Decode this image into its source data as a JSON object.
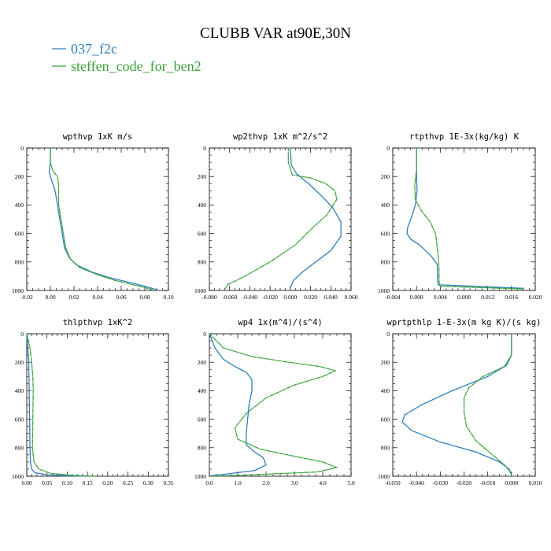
{
  "figure": {
    "title": "CLUBB VAR at90E,30N"
  },
  "legend": [
    {
      "name": "037_f2c",
      "color": "#2f7fbe",
      "dash": "solid"
    },
    {
      "name": "steffen_code_for_ben2",
      "color": "#3aa23a",
      "dash": "dash"
    }
  ],
  "chart_data": [
    {
      "type": "line",
      "title": "wpthvp  1xK m/s",
      "xlim": [
        -0.02,
        0.1
      ],
      "ylim": [
        0,
        1000
      ],
      "y_inverted": true,
      "xticks": [
        "-0.02",
        "0.00",
        "0.02",
        "0.04",
        "0.06",
        "0.08",
        "0.10"
      ],
      "xtick_values": [
        -0.02,
        0.0,
        0.02,
        0.04,
        0.06,
        0.08,
        0.1
      ],
      "yticks": [
        "0",
        "200",
        "400",
        "600",
        "800",
        "1000"
      ],
      "series": [
        {
          "name": "037_f2c",
          "x": [
            0.0,
            0.0,
            -0.001,
            0.0,
            0.004,
            0.006,
            0.008,
            0.01,
            0.012,
            0.016,
            0.022,
            0.035,
            0.05,
            0.065,
            0.08,
            0.09
          ],
          "y": [
            0,
            100,
            165,
            200,
            300,
            400,
            500,
            600,
            700,
            770,
            820,
            870,
            910,
            940,
            970,
            995
          ]
        },
        {
          "name": "steffen_code_for_ben2",
          "x": [
            0.0,
            0.0,
            0.002,
            0.006,
            0.007,
            0.007,
            0.009,
            0.011,
            0.013,
            0.017,
            0.025,
            0.04,
            0.055,
            0.07,
            0.08,
            0.086
          ],
          "y": [
            0,
            100,
            160,
            200,
            260,
            400,
            500,
            600,
            700,
            780,
            840,
            890,
            930,
            960,
            980,
            995
          ]
        }
      ]
    },
    {
      "type": "line",
      "title": "wp2thvp  1xK m^2/s^2",
      "xlim": [
        -0.08,
        0.06
      ],
      "ylim": [
        0,
        1000
      ],
      "y_inverted": true,
      "xticks": [
        "-0.080",
        "-0.060",
        "-0.040",
        "-0.020",
        "0.000",
        "0.020",
        "0.040",
        "0.060"
      ],
      "xtick_values": [
        -0.08,
        -0.06,
        -0.04,
        -0.02,
        0.0,
        0.02,
        0.04,
        0.06
      ],
      "yticks": [
        "0",
        "200",
        "400",
        "600",
        "800",
        "1000"
      ],
      "series": [
        {
          "name": "037_f2c",
          "x": [
            0.0,
            0.001,
            0.006,
            0.018,
            0.03,
            0.042,
            0.05,
            0.05,
            0.04,
            0.025,
            0.012,
            0.003,
            0.0
          ],
          "y": [
            0,
            120,
            180,
            250,
            330,
            420,
            520,
            620,
            720,
            800,
            870,
            930,
            980
          ]
        },
        {
          "name": "steffen_code_for_ben2",
          "x": [
            -0.002,
            -0.002,
            0.002,
            0.02,
            0.035,
            0.044,
            0.046,
            0.036,
            0.022,
            0.005,
            -0.02,
            -0.045,
            -0.062,
            -0.064
          ],
          "y": [
            0,
            100,
            190,
            210,
            250,
            300,
            360,
            470,
            560,
            680,
            800,
            900,
            960,
            985
          ]
        }
      ]
    },
    {
      "type": "line",
      "title": "rtpthvp  1E-3x(kg/kg) K",
      "xlim": [
        -0.004,
        0.02
      ],
      "ylim": [
        0,
        1000
      ],
      "y_inverted": true,
      "xticks": [
        "-0.004",
        "0.000",
        "0.004",
        "0.008",
        "0.012",
        "0.016",
        "0.020"
      ],
      "xtick_values": [
        -0.004,
        0.0,
        0.004,
        0.008,
        0.012,
        0.016,
        0.02
      ],
      "yticks": [
        "0",
        "200",
        "400",
        "600",
        "800",
        "1000"
      ],
      "series": [
        {
          "name": "037_f2c",
          "x": [
            0.0,
            0.0,
            0.0001,
            -0.0002,
            -0.0008,
            -0.0015,
            -0.0016,
            -0.001,
            0.0005,
            0.0025,
            0.0035,
            0.0035,
            0.0036,
            0.018
          ],
          "y": [
            0,
            200,
            300,
            400,
            480,
            560,
            600,
            640,
            680,
            760,
            820,
            870,
            960,
            985
          ]
        },
        {
          "name": "steffen_code_for_ben2",
          "x": [
            0.0,
            0.0,
            -0.0003,
            -0.0002,
            0.0008,
            0.0023,
            0.0032,
            0.0035,
            0.0037,
            0.0038,
            0.0038,
            0.0039,
            0.018
          ],
          "y": [
            0,
            150,
            260,
            360,
            440,
            520,
            600,
            700,
            780,
            860,
            930,
            970,
            990
          ]
        }
      ]
    },
    {
      "type": "line",
      "title": "thlpthvp  1xK^2",
      "xlim": [
        0.0,
        0.35
      ],
      "ylim": [
        0,
        1000
      ],
      "y_inverted": true,
      "xticks": [
        "0.00",
        "0.05",
        "0.10",
        "0.15",
        "0.20",
        "0.25",
        "0.30",
        "0.35"
      ],
      "xtick_values": [
        0.0,
        0.05,
        0.1,
        0.15,
        0.2,
        0.25,
        0.3,
        0.35
      ],
      "yticks": [
        "0",
        "200",
        "400",
        "600",
        "800",
        "1000"
      ],
      "series": [
        {
          "name": "037_f2c",
          "x": [
            0.0,
            0.005,
            0.006,
            0.007,
            0.008,
            0.009,
            0.012,
            0.02,
            0.05,
            0.1,
            0.15
          ],
          "y": [
            0,
            200,
            400,
            600,
            800,
            900,
            950,
            975,
            990,
            997,
            1000
          ]
        },
        {
          "name": "steffen_code_for_ben2",
          "x": [
            0.0,
            0.008,
            0.012,
            0.015,
            0.016,
            0.015,
            0.014,
            0.018,
            0.03,
            0.06,
            0.12,
            0.17
          ],
          "y": [
            0,
            100,
            200,
            300,
            400,
            600,
            800,
            900,
            950,
            980,
            995,
            1000
          ]
        }
      ]
    },
    {
      "type": "line",
      "title": "wp4  1x(m^4)/(s^4)",
      "xlim": [
        0.0,
        5.0
      ],
      "ylim": [
        0,
        1000
      ],
      "y_inverted": true,
      "xticks": [
        "0.0",
        "1.0",
        "2.0",
        "3.0",
        "4.0",
        "5.0"
      ],
      "xtick_values": [
        0.0,
        1.0,
        2.0,
        3.0,
        4.0,
        5.0
      ],
      "yticks": [
        "0",
        "200",
        "400",
        "600",
        "800",
        "1000"
      ],
      "series": [
        {
          "name": "037_f2c",
          "x": [
            0.0,
            0.2,
            0.5,
            0.9,
            1.3,
            1.5,
            1.5,
            1.4,
            1.35,
            1.3,
            1.3,
            1.6,
            1.9,
            2.0,
            1.6,
            0.6,
            0.1
          ],
          "y": [
            0,
            100,
            180,
            230,
            270,
            320,
            400,
            500,
            600,
            700,
            780,
            830,
            870,
            920,
            960,
            985,
            995
          ]
        },
        {
          "name": "steffen_code_for_ben2",
          "x": [
            0.0,
            0.5,
            1.5,
            2.8,
            3.9,
            4.45,
            4.0,
            3.0,
            2.0,
            1.3,
            0.9,
            1.0,
            1.8,
            3.0,
            4.0,
            4.5,
            3.8,
            1.5,
            0.1
          ],
          "y": [
            0,
            100,
            160,
            200,
            230,
            260,
            300,
            360,
            450,
            560,
            660,
            740,
            810,
            860,
            900,
            940,
            970,
            990,
            1000
          ]
        }
      ]
    },
    {
      "type": "line",
      "title": "wprtpthlp  1-E-3x(m kg K)/(s kg)",
      "xlim": [
        -0.05,
        0.01
      ],
      "ylim": [
        0,
        1000
      ],
      "y_inverted": true,
      "xticks": [
        "-0.050",
        "-0.040",
        "-0.030",
        "-0.020",
        "-0.010",
        "0.000",
        "0.010"
      ],
      "xtick_values": [
        -0.05,
        -0.04,
        -0.03,
        -0.02,
        -0.01,
        0.0,
        0.01
      ],
      "yticks": [
        "0",
        "200",
        "400",
        "600",
        "800",
        "1000"
      ],
      "series": [
        {
          "name": "037_f2c",
          "x": [
            0.0,
            0.0,
            -0.002,
            -0.01,
            -0.025,
            -0.038,
            -0.045,
            -0.046,
            -0.042,
            -0.03,
            -0.015,
            -0.005,
            -0.001,
            0.0
          ],
          "y": [
            0,
            150,
            220,
            300,
            400,
            500,
            570,
            620,
            680,
            760,
            830,
            900,
            950,
            990
          ]
        },
        {
          "name": "steffen_code_for_ben2",
          "x": [
            0.0,
            0.0,
            -0.003,
            -0.012,
            -0.018,
            -0.02,
            -0.02,
            -0.019,
            -0.015,
            -0.008,
            -0.003,
            -0.001,
            0.0
          ],
          "y": [
            0,
            150,
            230,
            300,
            380,
            450,
            550,
            650,
            750,
            850,
            920,
            960,
            990
          ]
        }
      ]
    }
  ]
}
